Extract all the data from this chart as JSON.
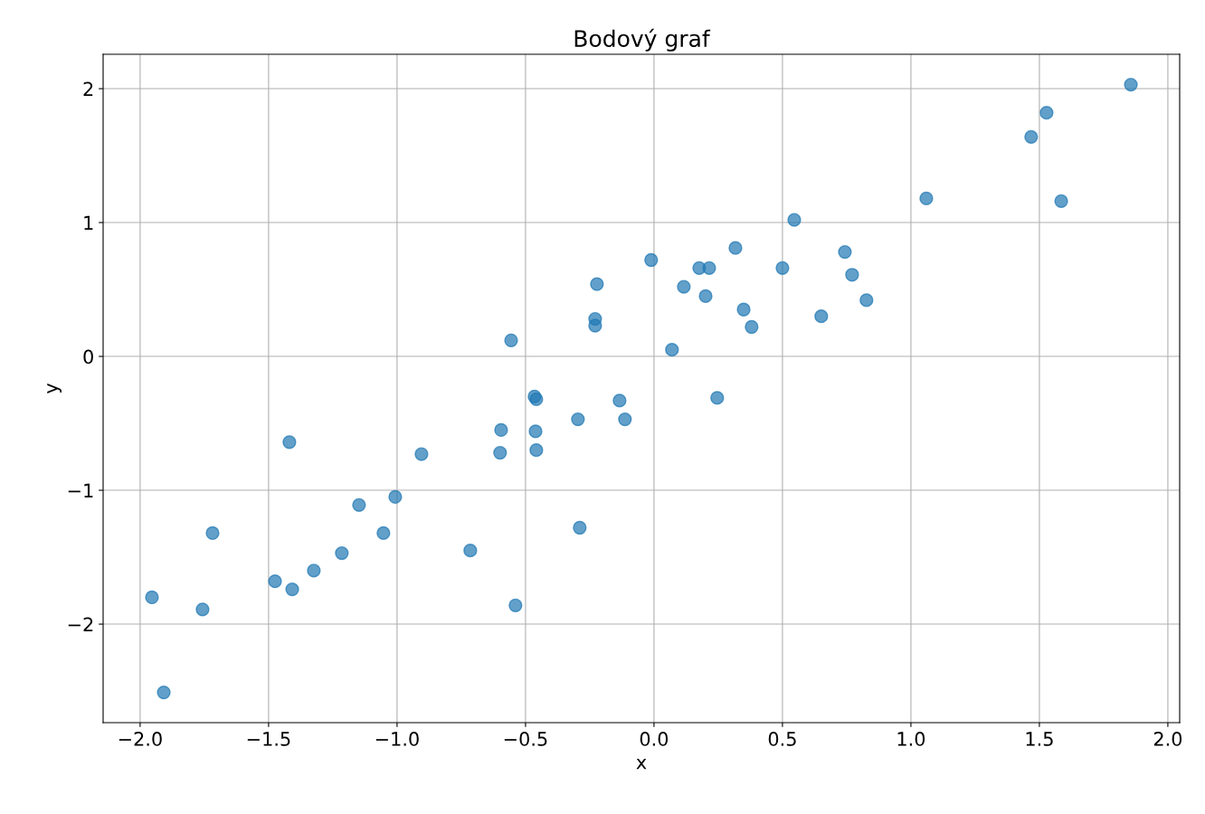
{
  "chart_data": {
    "type": "scatter",
    "title": "Bodový graf",
    "xlabel": "x",
    "ylabel": "y",
    "x": [
      -1.954,
      -1.908,
      -1.757,
      -1.718,
      -1.475,
      -1.419,
      -1.408,
      -1.324,
      -1.215,
      -1.148,
      -1.053,
      -1.007,
      -0.905,
      -0.715,
      -0.599,
      -0.595,
      -0.556,
      -0.539,
      -0.465,
      -0.458,
      -0.461,
      -0.458,
      -0.296,
      -0.289,
      -0.229,
      -0.229,
      -0.222,
      -0.134,
      -0.113,
      -0.011,
      0.07,
      0.116,
      0.176,
      0.201,
      0.215,
      0.246,
      0.317,
      0.349,
      0.38,
      0.5,
      0.546,
      0.651,
      0.743,
      0.771,
      0.827,
      1.06,
      1.468,
      1.528,
      1.585,
      1.856
    ],
    "series": [
      {
        "color": "#1f77b4",
        "values": [
          -1.8,
          -2.51,
          -1.89,
          -1.32,
          -1.68,
          -0.64,
          -1.74,
          -1.6,
          -1.47,
          -1.11,
          -1.32,
          -1.05,
          -0.73,
          -1.45,
          -0.72,
          -0.55,
          0.12,
          -1.86,
          -0.3,
          -0.32,
          -0.56,
          -0.7,
          -0.47,
          -1.28,
          0.28,
          0.23,
          0.54,
          -0.33,
          -0.47,
          0.72,
          0.05,
          0.52,
          0.66,
          0.45,
          0.66,
          -0.31,
          0.81,
          0.35,
          0.22,
          0.66,
          1.02,
          0.3,
          0.78,
          0.61,
          0.42,
          1.18,
          1.64,
          1.82,
          1.16,
          2.03
        ]
      }
    ],
    "xlim": [
      -2.144,
      2.046
    ],
    "ylim": [
      -2.736,
      2.257
    ],
    "xticks": [
      {
        "value": -2.0,
        "label": "−2.0"
      },
      {
        "value": -1.5,
        "label": "−1.5"
      },
      {
        "value": -1.0,
        "label": "−1.0"
      },
      {
        "value": -0.5,
        "label": "−0.5"
      },
      {
        "value": 0.0,
        "label": "0.0"
      },
      {
        "value": 0.5,
        "label": "0.5"
      },
      {
        "value": 1.0,
        "label": "1.0"
      },
      {
        "value": 1.5,
        "label": "1.5"
      },
      {
        "value": 2.0,
        "label": "2.0"
      }
    ],
    "yticks": [
      {
        "value": -2,
        "label": "−2"
      },
      {
        "value": -1,
        "label": "−1"
      },
      0,
      1,
      2
    ],
    "grid": true,
    "marker": "circle"
  }
}
